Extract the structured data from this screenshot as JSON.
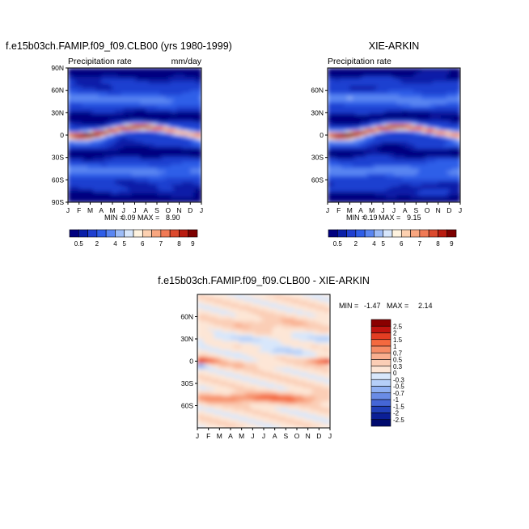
{
  "chart_data": [
    {
      "type": "heatmap",
      "title": "f.e15b03ch.FAMIP.f09_f09.CLB00 (yrs 1980-1999)",
      "left_label": "Precipitation rate",
      "right_label": "mm/day",
      "x_ticks": [
        "J",
        "F",
        "M",
        "A",
        "M",
        "J",
        "J",
        "A",
        "S",
        "O",
        "N",
        "D",
        "J"
      ],
      "y_ticks": [
        "90N",
        "60N",
        "30N",
        "0",
        "30S",
        "60S",
        "90S"
      ],
      "stats_min_label": "MIN =",
      "stats_min": "0.09",
      "stats_max_label": "MAX =",
      "stats_max": "8.90",
      "colorbar_labels": [
        "0.5",
        "2",
        "4",
        "5",
        "6",
        "7",
        "8",
        "9"
      ],
      "colorbar_colors": [
        "#00007f",
        "#0a1fa8",
        "#1f3fd0",
        "#2f5ee8",
        "#5a86f2",
        "#9dbcf7",
        "#d7e6fb",
        "#fff3df",
        "#fcd0b0",
        "#f8a67f",
        "#f07a55",
        "#dc4a2e",
        "#b91c10",
        "#7d0000"
      ]
    },
    {
      "type": "heatmap",
      "title": "XIE-ARKIN",
      "left_label": "Precipitation rate",
      "x_ticks": [
        "J",
        "F",
        "M",
        "A",
        "M",
        "J",
        "J",
        "A",
        "S",
        "O",
        "N",
        "D",
        "J"
      ],
      "y_ticks": [
        "60N",
        "30N",
        "0",
        "30S",
        "60S"
      ],
      "stats_min_label": "MIN =",
      "stats_min": "0.19",
      "stats_max_label": "MAX =",
      "stats_max": "9.15",
      "colorbar_labels": [
        "0.5",
        "2",
        "4",
        "5",
        "6",
        "7",
        "8",
        "9"
      ]
    },
    {
      "type": "heatmap",
      "title": "f.e15b03ch.FAMIP.f09_f09.CLB00 - XIE-ARKIN",
      "x_ticks": [
        "J",
        "F",
        "M",
        "A",
        "M",
        "J",
        "J",
        "A",
        "S",
        "O",
        "N",
        "D",
        "J"
      ],
      "y_ticks": [
        "60N",
        "30N",
        "0",
        "30S",
        "60S"
      ],
      "stats_min_label": "MIN =",
      "stats_min": "-1.47",
      "stats_max_label": "MAX =",
      "stats_max": "2.14",
      "colorbar_labels": [
        "2.5",
        "2",
        "1.5",
        "1",
        "0.7",
        "0.5",
        "0.3",
        "0",
        "-0.3",
        "-0.5",
        "-0.7",
        "-1",
        "-1.5",
        "-2",
        "-2.5"
      ],
      "colorbar_colors": [
        "#8a0000",
        "#c0140f",
        "#e33d22",
        "#f4693f",
        "#f68c66",
        "#f9ae8e",
        "#fbceb6",
        "#fde6d6",
        "#d8e7fb",
        "#b5cff8",
        "#8fb0f2",
        "#6a8ce6",
        "#4566d6",
        "#2140b8",
        "#0b1f96",
        "#000a6e"
      ]
    }
  ]
}
